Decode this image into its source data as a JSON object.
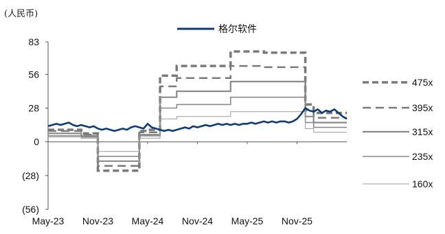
{
  "chart_data": {
    "type": "line",
    "unit_label": "(人民币)",
    "title": "",
    "xlabel": "",
    "ylabel": "",
    "ylim": [
      -56,
      83
    ],
    "y_ticks": [
      {
        "value": 83,
        "label": "83"
      },
      {
        "value": 56,
        "label": "56"
      },
      {
        "value": 28,
        "label": "28"
      },
      {
        "value": 0,
        "label": "0"
      },
      {
        "value": -28,
        "label": "(28)"
      },
      {
        "value": -56,
        "label": "(56)"
      }
    ],
    "x_ticks": [
      "May-23",
      "Nov-23",
      "May-24",
      "Nov-24",
      "May-25",
      "Nov-25"
    ],
    "x_tick_positions": [
      0,
      6,
      12,
      18,
      24,
      30
    ],
    "x_range": [
      0,
      36
    ],
    "price_series": {
      "name": "格尔软件",
      "color": "#0b3a78",
      "x": [
        0,
        0.5,
        1,
        1.5,
        2,
        2.5,
        3,
        3.5,
        4,
        4.5,
        5,
        5.5,
        6,
        6.5,
        7,
        7.5,
        8,
        8.5,
        9,
        9.5,
        10,
        10.5,
        11,
        11.5,
        12,
        12.5,
        13,
        13.5,
        14,
        14.5,
        15,
        15.5,
        16,
        16.5,
        17,
        17.5,
        18,
        18.5,
        19,
        19.5,
        20,
        20.5,
        21,
        21.5,
        22,
        22.5,
        23,
        23.5,
        24,
        24.5,
        25,
        25.5,
        26,
        26.5,
        27,
        27.5,
        28,
        28.5,
        29,
        29.5,
        30,
        30.5,
        31,
        31.5,
        32,
        32.5,
        33,
        33.5,
        34,
        34.5,
        35,
        35.5,
        36
      ],
      "values": [
        13,
        14,
        15,
        14,
        15,
        16,
        14,
        13,
        14,
        13,
        12,
        13,
        11,
        10,
        11,
        10,
        9,
        10,
        11,
        10,
        12,
        13,
        12,
        11,
        15,
        12,
        11,
        10,
        9,
        10,
        9,
        10,
        11,
        12,
        11,
        13,
        12,
        13,
        14,
        13,
        14,
        15,
        14,
        15,
        14,
        15,
        14,
        15,
        15,
        16,
        15,
        16,
        17,
        16,
        17,
        16,
        17,
        17,
        16,
        17,
        19,
        23,
        28,
        26,
        25,
        27,
        24,
        26,
        25,
        27,
        24,
        21,
        19
      ]
    },
    "band_periods": [
      [
        0,
        4
      ],
      [
        4,
        6
      ],
      [
        6,
        11
      ],
      [
        11,
        12
      ],
      [
        12,
        13.5
      ],
      [
        13.5,
        15.5
      ],
      [
        15.5,
        22
      ],
      [
        22,
        26
      ],
      [
        26,
        31
      ],
      [
        31,
        32
      ],
      [
        32,
        36
      ]
    ],
    "band_series": [
      {
        "name": "475x",
        "style": "dashed-thick",
        "values": [
          10,
          7,
          -24,
          9,
          10,
          55,
          63,
          75,
          74,
          31,
          24
        ]
      },
      {
        "name": "395x",
        "style": "dashed",
        "values": [
          9,
          6,
          -20,
          8,
          8,
          46,
          53,
          63,
          62,
          26,
          20
        ]
      },
      {
        "name": "315x",
        "style": "solid",
        "values": [
          7,
          5,
          -16,
          6,
          6,
          37,
          42,
          50,
          50,
          21,
          16
        ]
      },
      {
        "name": "235x",
        "style": "solid",
        "values": [
          5,
          4,
          -12,
          5,
          5,
          28,
          31,
          37,
          37,
          16,
          12
        ]
      },
      {
        "name": "160x",
        "style": "solid-thin",
        "values": [
          4,
          3,
          -8,
          3,
          3,
          19,
          21,
          25,
          25,
          11,
          8
        ]
      }
    ],
    "grid": false,
    "legend_placement": "right"
  },
  "colors": {
    "price": "#0b3a78",
    "band": "#888888",
    "band_dark": "#7a7a7a",
    "axis": "#555555"
  }
}
